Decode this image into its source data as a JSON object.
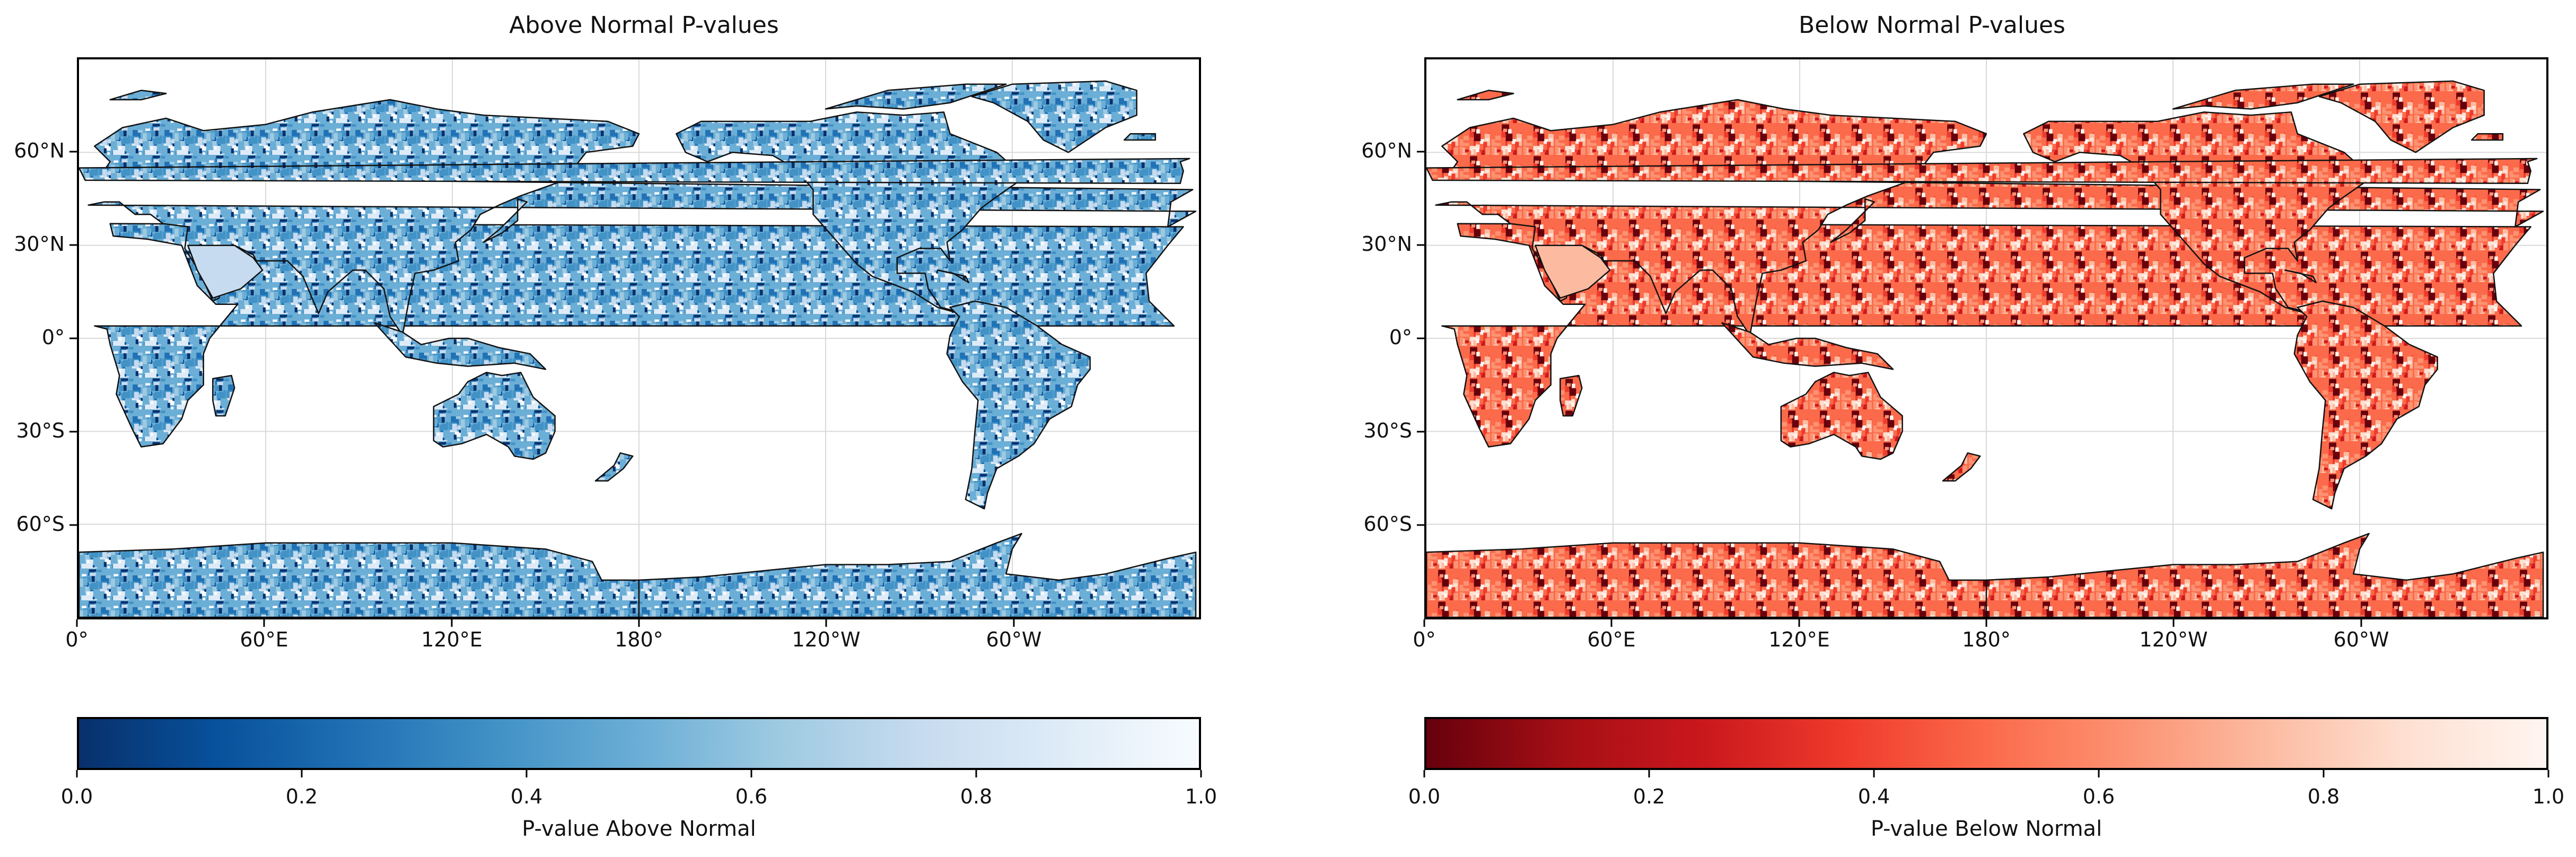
{
  "panels": [
    {
      "title": "Above Normal P-values",
      "colorbar_label": "P-value Above Normal",
      "cmap": [
        "#08306b",
        "#08519c",
        "#2171b5",
        "#4292c6",
        "#6baed6",
        "#9ecae1",
        "#c6dbef",
        "#deebf7",
        "#f7fbff"
      ],
      "land_fill": "#3b7fc0",
      "land_light": "#e8f1fa"
    },
    {
      "title": "Below Normal P-values",
      "colorbar_label": "P-value Below Normal",
      "cmap": [
        "#67000d",
        "#a50f15",
        "#cb181d",
        "#ef3b2c",
        "#fb6a4a",
        "#fc9272",
        "#fcbba1",
        "#fee0d2",
        "#fff5f0"
      ],
      "land_fill": "#e0402e",
      "land_light": "#fde4da"
    }
  ],
  "lat_labels": [
    "60°N",
    "30°N",
    "0°",
    "30°S",
    "60°S"
  ],
  "lon_labels": [
    "0°",
    "60°E",
    "120°E",
    "180°",
    "120°W",
    "60°W"
  ],
  "colorbar_ticks": [
    "0.0",
    "0.2",
    "0.4",
    "0.6",
    "0.8",
    "1.0"
  ]
}
